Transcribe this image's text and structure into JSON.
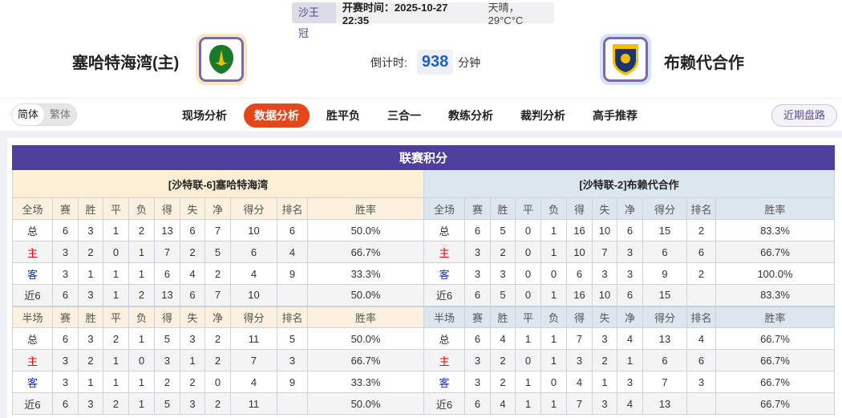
{
  "header": {
    "league": "沙王冠",
    "kickoff": "开赛时间：2025-10-27 22:35",
    "weather": "天晴，29°C°C",
    "home_team": "塞哈特海湾(主)",
    "away_team": "布赖代合作",
    "countdown_label": "倒计时:",
    "countdown_value": "938",
    "countdown_unit": "分钟"
  },
  "lang": {
    "simplified": "简体",
    "traditional": "繁体"
  },
  "tabs": [
    "现场分析",
    "数据分析",
    "胜平负",
    "三合一",
    "教练分析",
    "裁判分析",
    "高手推荐"
  ],
  "active_tab": "数据分析",
  "recent_button": "近期盘路",
  "colors": {
    "accent": "#e5471a",
    "title_bar": "#4f3f9c"
  },
  "standings": {
    "title": "联赛积分",
    "home": {
      "header": "[沙特联-6]塞哈特海湾",
      "full_cols": [
        "全场",
        "赛",
        "胜",
        "平",
        "负",
        "得",
        "失",
        "净",
        "得分",
        "排名",
        "胜率"
      ],
      "full_rows": [
        [
          "总",
          "6",
          "3",
          "1",
          "2",
          "13",
          "6",
          "7",
          "10",
          "6",
          "50.0%"
        ],
        [
          "主",
          "3",
          "2",
          "0",
          "1",
          "7",
          "2",
          "5",
          "6",
          "4",
          "66.7%"
        ],
        [
          "客",
          "3",
          "1",
          "1",
          "1",
          "6",
          "4",
          "2",
          "4",
          "9",
          "33.3%"
        ],
        [
          "近6",
          "6",
          "3",
          "1",
          "2",
          "13",
          "6",
          "7",
          "10",
          "",
          "50.0%"
        ]
      ],
      "half_cols": [
        "半场",
        "赛",
        "胜",
        "平",
        "负",
        "得",
        "失",
        "净",
        "得分",
        "排名",
        "胜率"
      ],
      "half_rows": [
        [
          "总",
          "6",
          "3",
          "2",
          "1",
          "5",
          "3",
          "2",
          "11",
          "5",
          "50.0%"
        ],
        [
          "主",
          "3",
          "2",
          "1",
          "0",
          "3",
          "1",
          "2",
          "7",
          "3",
          "66.7%"
        ],
        [
          "客",
          "3",
          "1",
          "1",
          "1",
          "2",
          "2",
          "0",
          "4",
          "9",
          "33.3%"
        ],
        [
          "近6",
          "6",
          "3",
          "2",
          "1",
          "5",
          "3",
          "2",
          "11",
          "",
          "50.0%"
        ]
      ]
    },
    "away": {
      "header": "[沙特联-2]布赖代合作",
      "full_cols": [
        "全场",
        "赛",
        "胜",
        "平",
        "负",
        "得",
        "失",
        "净",
        "得分",
        "排名",
        "胜率"
      ],
      "full_rows": [
        [
          "总",
          "6",
          "5",
          "0",
          "1",
          "16",
          "10",
          "6",
          "15",
          "2",
          "83.3%"
        ],
        [
          "主",
          "3",
          "2",
          "0",
          "1",
          "10",
          "7",
          "3",
          "6",
          "6",
          "66.7%"
        ],
        [
          "客",
          "3",
          "3",
          "0",
          "0",
          "6",
          "3",
          "3",
          "9",
          "2",
          "100.0%"
        ],
        [
          "近6",
          "6",
          "5",
          "0",
          "1",
          "16",
          "10",
          "6",
          "15",
          "",
          "83.3%"
        ]
      ],
      "half_cols": [
        "半场",
        "赛",
        "胜",
        "平",
        "负",
        "得",
        "失",
        "净",
        "得分",
        "排名",
        "胜率"
      ],
      "half_rows": [
        [
          "总",
          "6",
          "4",
          "1",
          "1",
          "7",
          "3",
          "4",
          "13",
          "4",
          "66.7%"
        ],
        [
          "主",
          "3",
          "2",
          "0",
          "1",
          "3",
          "2",
          "1",
          "6",
          "6",
          "66.7%"
        ],
        [
          "客",
          "3",
          "2",
          "1",
          "0",
          "4",
          "1",
          "3",
          "7",
          "3",
          "66.7%"
        ],
        [
          "近6",
          "6",
          "4",
          "1",
          "1",
          "7",
          "3",
          "4",
          "13",
          "",
          "66.7%"
        ]
      ]
    }
  }
}
